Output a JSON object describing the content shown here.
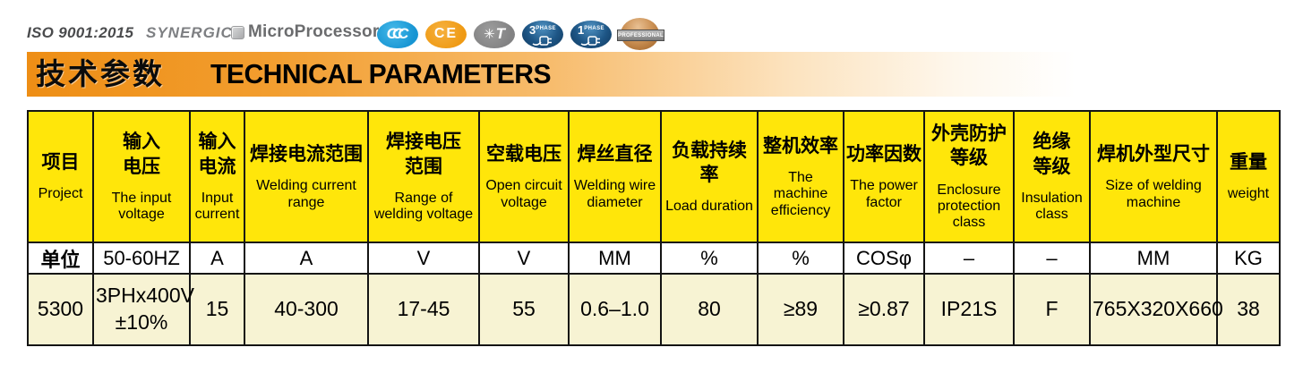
{
  "topbar": {
    "iso": "ISO 9001:2015",
    "synergic": "SYNERGIC",
    "microprocessor": "MicroProcessor",
    "badges": {
      "ccc": {
        "label": "CCC"
      },
      "ce": {
        "label": "CE"
      },
      "fan": {
        "label": "T"
      },
      "phase3": {
        "number": "3",
        "word": "PHASE"
      },
      "phase1": {
        "number": "1",
        "word": "PHASE"
      },
      "professional": {
        "label": "PROFESSIONAL"
      }
    }
  },
  "title": {
    "zh": "技术参数",
    "en": "TECHNICAL PARAMETERS"
  },
  "table": {
    "columns": [
      {
        "zh": "项目",
        "en": "Project",
        "unit": "单位",
        "value": "5300"
      },
      {
        "zh": "输入\n电压",
        "en": "The input voltage",
        "unit": "50-60HZ",
        "value": "3PHx400V\n±10%"
      },
      {
        "zh": "输入\n电流",
        "en": "Input current",
        "unit": "A",
        "value": "15"
      },
      {
        "zh": "焊接电流范围",
        "en": "Welding current range",
        "unit": "A",
        "value": "40-300"
      },
      {
        "zh": "焊接电压\n范围",
        "en": "Range of welding voltage",
        "unit": "V",
        "value": "17-45"
      },
      {
        "zh": "空载电压",
        "en": "Open circuit voltage",
        "unit": "V",
        "value": "55"
      },
      {
        "zh": "焊丝直径",
        "en": "Welding wire diameter",
        "unit": "MM",
        "value": "0.6–1.0"
      },
      {
        "zh": "负载持续率",
        "en": "Load duration",
        "unit": "%",
        "value": "80"
      },
      {
        "zh": "整机效率",
        "en": "The machine efficiency",
        "unit": "%",
        "value": "≥89"
      },
      {
        "zh": "功率因数",
        "en": "The power factor",
        "unit": "COSφ",
        "value": "≥0.87"
      },
      {
        "zh": "外壳防护\n等级",
        "en": "Enclosure protection class",
        "unit": "–",
        "value": "IP21S"
      },
      {
        "zh": "绝缘\n等级",
        "en": "Insulation class",
        "unit": "–",
        "value": "F"
      },
      {
        "zh": "焊机外型尺寸",
        "en": "Size of welding machine",
        "unit": "MM",
        "value": "765X320X660"
      },
      {
        "zh": "重量",
        "en": "weight",
        "unit": "KG",
        "value": "38"
      }
    ]
  },
  "colors": {
    "header_yellow": "#FFE60A",
    "data_cream": "#F7F3D3",
    "title_orange": "#EE8E15",
    "ccc_blue": "#1B9DD9",
    "ce_orange": "#F09C1B",
    "fan_gray": "#8A8A8A",
    "phase_navy": "#1D5585",
    "professional_bronze": "#C08449",
    "border_black": "#141414"
  }
}
